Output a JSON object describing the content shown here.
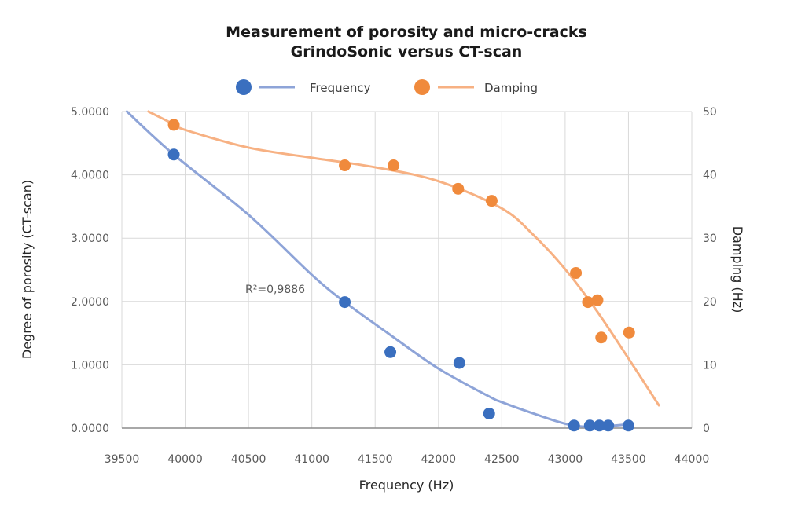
{
  "chart_data": {
    "type": "scatter",
    "title": [
      "Measurement of porosity and micro-cracks",
      "GrindoSonic versus CT-scan"
    ],
    "xlabel": "Frequency (Hz)",
    "ylabel": "Degree of porosity (CT-scan)",
    "y2label": "Damping (Hz)",
    "xlim": [
      39500,
      44000
    ],
    "ylim": [
      0,
      5
    ],
    "y2lim": [
      0,
      50
    ],
    "grid": true,
    "legend_position": "top",
    "x_ticks": [
      "39500",
      "40000",
      "40500",
      "41000",
      "41500",
      "42000",
      "42500",
      "43000",
      "43500",
      "44000"
    ],
    "x_tick_values": [
      39500,
      40000,
      40500,
      41000,
      41500,
      42000,
      42500,
      43000,
      43500,
      44000
    ],
    "y_ticks": [
      "0.0000",
      "1.0000",
      "2.0000",
      "3.0000",
      "4.0000",
      "5.0000"
    ],
    "y_tick_values": [
      0,
      1,
      2,
      3,
      4,
      5
    ],
    "y2_ticks": [
      "0",
      "10",
      "20",
      "30",
      "40",
      "50"
    ],
    "y2_tick_values": [
      0,
      10,
      20,
      30,
      40,
      50
    ],
    "series": [
      {
        "name": "Frequency",
        "axis": "left",
        "color": "#3a6fbf",
        "trend_color": "#8ea4d8",
        "points": [
          {
            "x": 39910,
            "y": 4.32
          },
          {
            "x": 41260,
            "y": 1.99
          },
          {
            "x": 41620,
            "y": 1.2
          },
          {
            "x": 42165,
            "y": 1.03
          },
          {
            "x": 42400,
            "y": 0.23
          },
          {
            "x": 43070,
            "y": 0.04
          },
          {
            "x": 43195,
            "y": 0.04
          },
          {
            "x": 43270,
            "y": 0.04
          },
          {
            "x": 43340,
            "y": 0.04
          },
          {
            "x": 43500,
            "y": 0.04
          }
        ],
        "trendline": [
          {
            "x": 39540,
            "y": 5.0
          },
          {
            "x": 39910,
            "y": 4.32
          },
          {
            "x": 40500,
            "y": 3.37
          },
          {
            "x": 41000,
            "y": 2.42
          },
          {
            "x": 41260,
            "y": 1.99
          },
          {
            "x": 41600,
            "y": 1.5
          },
          {
            "x": 42000,
            "y": 0.94
          },
          {
            "x": 42400,
            "y": 0.5
          },
          {
            "x": 42500,
            "y": 0.41
          },
          {
            "x": 42750,
            "y": 0.23
          },
          {
            "x": 43000,
            "y": 0.07
          },
          {
            "x": 43200,
            "y": 0.02
          },
          {
            "x": 43500,
            "y": 0.06
          }
        ],
        "r_squared_label": "R²=0,9886"
      },
      {
        "name": "Damping",
        "axis": "right",
        "color": "#f08a3c",
        "trend_color": "#f7b183",
        "points": [
          {
            "x": 39910,
            "y": 47.9
          },
          {
            "x": 41260,
            "y": 41.5
          },
          {
            "x": 41645,
            "y": 41.5
          },
          {
            "x": 42155,
            "y": 37.8
          },
          {
            "x": 42420,
            "y": 35.9
          },
          {
            "x": 43085,
            "y": 24.5
          },
          {
            "x": 43180,
            "y": 19.9
          },
          {
            "x": 43255,
            "y": 20.2
          },
          {
            "x": 43285,
            "y": 14.3
          },
          {
            "x": 43505,
            "y": 15.1
          }
        ],
        "trendline": [
          {
            "x": 39710,
            "y": 50.0
          },
          {
            "x": 39910,
            "y": 48.0
          },
          {
            "x": 40000,
            "y": 47.1
          },
          {
            "x": 40500,
            "y": 44.3
          },
          {
            "x": 41000,
            "y": 42.7
          },
          {
            "x": 41500,
            "y": 41.2
          },
          {
            "x": 42000,
            "y": 39.0
          },
          {
            "x": 42500,
            "y": 34.7
          },
          {
            "x": 42750,
            "y": 30.5
          },
          {
            "x": 43000,
            "y": 25.1
          },
          {
            "x": 43250,
            "y": 18.5
          },
          {
            "x": 43500,
            "y": 11.0
          },
          {
            "x": 43740,
            "y": 3.6
          }
        ]
      }
    ]
  }
}
